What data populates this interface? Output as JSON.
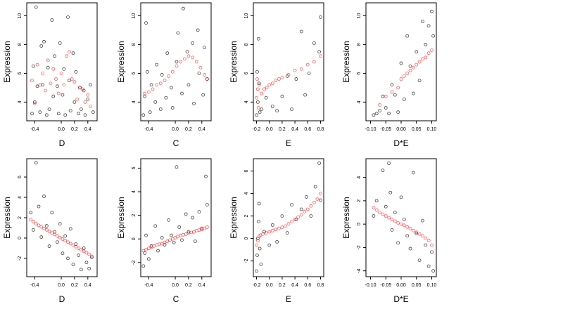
{
  "chart_data": [
    {
      "type": "scatter",
      "xlabel": "D",
      "ylabel": "Expression",
      "xticks": [
        "-0.4",
        "0.0",
        "0.2",
        "0.4"
      ],
      "xtick_values": [
        -0.4,
        0,
        0.2,
        0.4
      ],
      "yticks": [
        "4",
        "6",
        "8",
        "10"
      ],
      "ytick_values": [
        4,
        6,
        8,
        10
      ],
      "xlim": [
        -0.52,
        0.54
      ],
      "ylim": [
        2.7,
        10.9
      ],
      "series": [
        {
          "color": "#000000",
          "x": [
            -0.44,
            -0.42,
            -0.4,
            -0.38,
            -0.36,
            -0.32,
            -0.3,
            -0.28,
            -0.26,
            -0.22,
            -0.2,
            -0.18,
            -0.14,
            -0.12,
            -0.1,
            -0.06,
            -0.04,
            -0.02,
            0.02,
            0.04,
            0.06,
            0.1,
            0.12,
            0.14,
            0.18,
            0.2,
            0.22,
            0.26,
            0.28,
            0.3,
            0.34,
            0.36,
            0.4,
            0.44,
            0.48
          ],
          "y": [
            3.2,
            6.5,
            4.0,
            10.6,
            5.1,
            3.3,
            7.9,
            5.2,
            8.2,
            3.1,
            6.4,
            3.5,
            9.7,
            4.4,
            7.2,
            5.1,
            3.2,
            8.1,
            4.5,
            6.3,
            3.1,
            9.9,
            5.5,
            3.4,
            7.4,
            4.0,
            6.1,
            3.2,
            5.0,
            3.5,
            4.8,
            3.1,
            4.2,
            5.2,
            3.3
          ]
        },
        {
          "color": "#ff0000",
          "x": [
            -0.44,
            -0.4,
            -0.36,
            -0.32,
            -0.28,
            -0.24,
            -0.2,
            -0.16,
            -0.12,
            -0.08,
            -0.04,
            0.0,
            0.04,
            0.08,
            0.12,
            0.16,
            0.2,
            0.24,
            0.28,
            0.32,
            0.36,
            0.4,
            0.44
          ],
          "y": [
            5.5,
            3.9,
            6.6,
            5.2,
            6.0,
            4.8,
            6.9,
            5.3,
            6.3,
            5.6,
            4.6,
            6.0,
            5.2,
            7.2,
            7.5,
            5.6,
            5.4,
            4.2,
            5.0,
            4.9,
            4.0,
            4.5,
            3.7
          ]
        }
      ]
    },
    {
      "type": "scatter",
      "xlabel": "C",
      "ylabel": "Expression",
      "xticks": [
        "-0.4",
        "0.0",
        "0.2",
        "0.4"
      ],
      "xtick_values": [
        -0.4,
        0,
        0.2,
        0.4
      ],
      "yticks": [
        "4",
        "6",
        "8",
        "10"
      ],
      "ytick_values": [
        4,
        6,
        8,
        10
      ],
      "xlim": [
        -0.52,
        0.54
      ],
      "ylim": [
        2.7,
        10.9
      ],
      "series": [
        {
          "color": "#000000",
          "x": [
            -0.48,
            -0.46,
            -0.44,
            -0.42,
            -0.38,
            -0.36,
            -0.3,
            -0.28,
            -0.22,
            -0.2,
            -0.14,
            -0.12,
            -0.06,
            -0.04,
            0.02,
            0.04,
            0.1,
            0.12,
            0.18,
            0.2,
            0.26,
            0.28,
            0.34,
            0.36,
            0.42,
            0.44,
            0.48
          ],
          "y": [
            3.1,
            4.4,
            9.5,
            6.1,
            3.3,
            5.2,
            4.0,
            6.6,
            3.5,
            5.9,
            4.3,
            7.4,
            5.0,
            3.6,
            6.8,
            8.8,
            4.6,
            10.5,
            7.5,
            5.2,
            8.1,
            3.9,
            9.0,
            6.0,
            4.5,
            7.8,
            5.6
          ]
        },
        {
          "color": "#ff0000",
          "x": [
            -0.46,
            -0.4,
            -0.34,
            -0.28,
            -0.22,
            -0.16,
            -0.1,
            -0.04,
            0.02,
            0.08,
            0.14,
            0.2,
            0.26,
            0.32,
            0.38,
            0.44,
            0.48
          ],
          "y": [
            4.6,
            4.7,
            4.9,
            5.2,
            5.3,
            5.5,
            5.8,
            6.1,
            6.5,
            6.8,
            7.0,
            7.2,
            7.1,
            6.8,
            6.4,
            5.9,
            5.6
          ]
        }
      ]
    },
    {
      "type": "scatter",
      "xlabel": "E",
      "ylabel": "Expression",
      "xticks": [
        "-0.2",
        "0.0",
        "0.2",
        "0.4",
        "0.6",
        "0.8"
      ],
      "xtick_values": [
        -0.2,
        0,
        0.2,
        0.4,
        0.6,
        0.8
      ],
      "yticks": [
        "4",
        "6",
        "8",
        "10"
      ],
      "ytick_values": [
        4,
        6,
        8,
        10
      ],
      "xlim": [
        -0.25,
        0.85
      ],
      "ylim": [
        2.7,
        10.9
      ],
      "series": [
        {
          "color": "#000000",
          "x": [
            -0.2,
            -0.19,
            -0.18,
            -0.17,
            -0.16,
            -0.15,
            -0.12,
            -0.05,
            0.05,
            0.12,
            0.2,
            0.28,
            0.35,
            0.42,
            0.5,
            0.56,
            0.62,
            0.7,
            0.78,
            0.8
          ],
          "y": [
            3.1,
            6.1,
            4.0,
            8.4,
            5.3,
            3.3,
            3.5,
            4.3,
            3.7,
            3.4,
            4.4,
            5.8,
            3.5,
            5.6,
            8.9,
            4.5,
            6.0,
            8.1,
            7.5,
            9.9
          ]
        },
        {
          "color": "#ff0000",
          "x": [
            -0.2,
            -0.19,
            -0.18,
            -0.17,
            -0.16,
            -0.12,
            -0.08,
            -0.04,
            0.0,
            0.05,
            0.1,
            0.15,
            0.2,
            0.3,
            0.4,
            0.5,
            0.6,
            0.7,
            0.8
          ],
          "y": [
            4.3,
            5.6,
            4.9,
            3.6,
            5.2,
            4.6,
            4.9,
            5.0,
            5.2,
            5.3,
            5.5,
            5.6,
            5.7,
            5.9,
            6.2,
            6.3,
            6.6,
            6.8,
            7.2
          ]
        }
      ]
    },
    {
      "type": "scatter",
      "xlabel": "D*E",
      "ylabel": "Expression",
      "xticks": [
        "-0.10",
        "-0.05",
        "0.00",
        "0.05",
        "0.10"
      ],
      "xtick_values": [
        -0.1,
        -0.05,
        0,
        0.05,
        0.1
      ],
      "yticks": [
        "4",
        "6",
        "8",
        "10"
      ],
      "ytick_values": [
        4,
        6,
        8,
        10
      ],
      "xlim": [
        -0.115,
        0.115
      ],
      "ylim": [
        2.7,
        10.9
      ],
      "series": [
        {
          "color": "#000000",
          "x": [
            -0.09,
            -0.08,
            -0.07,
            -0.06,
            -0.05,
            -0.04,
            -0.03,
            -0.02,
            -0.01,
            0.0,
            0.01,
            0.02,
            0.03,
            0.04,
            0.05,
            0.06,
            0.07,
            0.08,
            0.09,
            0.1,
            0.105
          ],
          "y": [
            3.1,
            3.2,
            3.4,
            4.4,
            3.6,
            3.2,
            5.2,
            4.5,
            3.3,
            6.7,
            4.2,
            8.6,
            6.5,
            4.6,
            7.5,
            5.5,
            9.6,
            8.0,
            9.3,
            10.3,
            8.6
          ]
        },
        {
          "color": "#ff0000",
          "x": [
            -0.07,
            -0.05,
            -0.03,
            -0.01,
            0.0,
            0.01,
            0.02,
            0.03,
            0.04,
            0.05,
            0.06,
            0.07,
            0.08,
            0.09,
            0.1
          ],
          "y": [
            3.8,
            4.4,
            4.7,
            5.0,
            5.6,
            5.8,
            6.0,
            6.2,
            6.4,
            6.6,
            6.8,
            7.0,
            7.1,
            7.4,
            7.6
          ]
        }
      ]
    },
    {
      "type": "scatter",
      "xlabel": "D",
      "ylabel": "Expression",
      "xticks": [
        "-0.4",
        "0.0",
        "0.2",
        "0.4"
      ],
      "xtick_values": [
        -0.4,
        0,
        0.2,
        0.4
      ],
      "yticks": [
        "-2",
        "0",
        "2",
        "4",
        "6"
      ],
      "ytick_values": [
        -2,
        0,
        2,
        4,
        6
      ],
      "xlim": [
        -0.52,
        0.54
      ],
      "ylim": [
        -3.8,
        7.8
      ],
      "series": [
        {
          "color": "#000000",
          "x": [
            -0.46,
            -0.42,
            -0.38,
            -0.34,
            -0.3,
            -0.26,
            -0.22,
            -0.18,
            -0.14,
            -0.1,
            -0.06,
            -0.02,
            0.02,
            0.06,
            0.1,
            0.14,
            0.18,
            0.22,
            0.26,
            0.3,
            0.34,
            0.38,
            0.42,
            0.46
          ],
          "y": [
            2.5,
            0.8,
            7.4,
            3.1,
            0.1,
            4.1,
            1.2,
            -0.8,
            2.5,
            0.6,
            -0.4,
            1.4,
            -1.5,
            0.2,
            -2.0,
            0.9,
            -2.6,
            -0.6,
            -1.7,
            -3.1,
            -1.0,
            -2.4,
            -3.0,
            -1.9
          ]
        },
        {
          "color": "#ff0000",
          "x": [
            -0.46,
            -0.42,
            -0.38,
            -0.34,
            -0.3,
            -0.26,
            -0.22,
            -0.18,
            -0.14,
            -0.1,
            -0.06,
            -0.02,
            0.02,
            0.06,
            0.1,
            0.14,
            0.18,
            0.22,
            0.26,
            0.3,
            0.34,
            0.38,
            0.42,
            0.46
          ],
          "y": [
            1.8,
            1.6,
            1.4,
            1.25,
            1.1,
            0.95,
            0.8,
            0.65,
            0.5,
            0.35,
            0.2,
            0.05,
            -0.1,
            -0.25,
            -0.4,
            -0.55,
            -0.7,
            -0.85,
            -1.0,
            -1.15,
            -1.3,
            -1.45,
            -1.6,
            -1.8
          ]
        }
      ]
    },
    {
      "type": "scatter",
      "xlabel": "C",
      "ylabel": "Expression",
      "xticks": [
        "-0.4",
        "0.0",
        "0.2",
        "0.4"
      ],
      "xtick_values": [
        -0.4,
        0,
        0.2,
        0.4
      ],
      "yticks": [
        "-2",
        "0",
        "2",
        "4",
        "6"
      ],
      "ytick_values": [
        -2,
        0,
        2,
        4,
        6
      ],
      "xlim": [
        -0.52,
        0.54
      ],
      "ylim": [
        -3.2,
        6.8
      ],
      "series": [
        {
          "color": "#000000",
          "x": [
            -0.48,
            -0.46,
            -0.44,
            -0.4,
            -0.36,
            -0.3,
            -0.26,
            -0.2,
            -0.16,
            -0.1,
            -0.06,
            -0.02,
            0.02,
            0.06,
            0.1,
            0.16,
            0.2,
            0.26,
            0.3,
            0.36,
            0.4,
            0.46,
            0.48
          ],
          "y": [
            -2.3,
            -1.2,
            0.3,
            -1.7,
            -0.6,
            1.1,
            -1.0,
            0.1,
            -0.5,
            1.6,
            0.3,
            -0.3,
            6.1,
            1.0,
            -0.1,
            2.1,
            0.6,
            1.8,
            -0.2,
            2.3,
            0.9,
            5.3,
            2.9
          ]
        },
        {
          "color": "#ff0000",
          "x": [
            -0.48,
            -0.44,
            -0.4,
            -0.36,
            -0.32,
            -0.28,
            -0.24,
            -0.2,
            -0.16,
            -0.12,
            -0.08,
            -0.04,
            0.0,
            0.04,
            0.08,
            0.12,
            0.16,
            0.2,
            0.24,
            0.28,
            0.32,
            0.36,
            0.4,
            0.44,
            0.48
          ],
          "y": [
            -1.0,
            -0.9,
            -0.8,
            -0.7,
            -0.6,
            -0.5,
            -0.45,
            -0.4,
            -0.3,
            -0.2,
            -0.1,
            0.0,
            0.1,
            0.2,
            0.3,
            0.35,
            0.4,
            0.5,
            0.55,
            0.6,
            0.7,
            0.75,
            0.8,
            0.9,
            1.0
          ]
        }
      ]
    },
    {
      "type": "scatter",
      "xlabel": "E",
      "ylabel": "Expression",
      "xticks": [
        "-0.2",
        "0.0",
        "0.2",
        "0.4",
        "0.6",
        "0.8"
      ],
      "xtick_values": [
        -0.2,
        0,
        0.2,
        0.4,
        0.6,
        0.8
      ],
      "yticks": [
        "-2",
        "0",
        "2",
        "4",
        "6"
      ],
      "ytick_values": [
        -2,
        0,
        2,
        4,
        6
      ],
      "xlim": [
        -0.25,
        0.85
      ],
      "ylim": [
        -3.4,
        7.1
      ],
      "series": [
        {
          "color": "#000000",
          "x": [
            -0.2,
            -0.19,
            -0.18,
            -0.17,
            -0.16,
            -0.15,
            -0.13,
            -0.08,
            0.0,
            0.05,
            0.12,
            0.2,
            0.28,
            0.35,
            0.42,
            0.5,
            0.58,
            0.65,
            0.72,
            0.78,
            0.8
          ],
          "y": [
            -2.9,
            -1.5,
            0.0,
            1.5,
            3.1,
            -0.9,
            -2.3,
            0.6,
            -0.6,
            1.2,
            -0.3,
            2.0,
            0.5,
            3.0,
            1.7,
            2.6,
            3.7,
            2.0,
            4.6,
            6.7,
            3.4
          ]
        },
        {
          "color": "#ff0000",
          "x": [
            -0.2,
            -0.18,
            -0.16,
            -0.14,
            -0.1,
            -0.05,
            0.0,
            0.05,
            0.1,
            0.15,
            0.2,
            0.25,
            0.3,
            0.35,
            0.4,
            0.45,
            0.5,
            0.55,
            0.6,
            0.65,
            0.7,
            0.75,
            0.8
          ],
          "y": [
            -0.6,
            -0.2,
            0.2,
            0.3,
            0.4,
            0.5,
            0.6,
            0.7,
            0.8,
            0.9,
            1.0,
            1.1,
            1.3,
            1.5,
            1.7,
            1.9,
            2.1,
            2.4,
            2.6,
            2.9,
            3.2,
            3.5,
            4.0
          ]
        }
      ]
    },
    {
      "type": "scatter",
      "xlabel": "D*E",
      "ylabel": "Expression",
      "xticks": [
        "-0.10",
        "-0.05",
        "0.00",
        "0.05",
        "0.10"
      ],
      "xtick_values": [
        -0.1,
        -0.05,
        0,
        0.05,
        0.1
      ],
      "yticks": [
        "-4",
        "-2",
        "0",
        "2",
        "4"
      ],
      "ytick_values": [
        -4,
        -2,
        0,
        2,
        4
      ],
      "xlim": [
        -0.115,
        0.115
      ],
      "ylim": [
        -4.5,
        5.6
      ],
      "series": [
        {
          "color": "#000000",
          "x": [
            -0.09,
            -0.08,
            -0.06,
            -0.05,
            -0.04,
            -0.035,
            -0.03,
            -0.02,
            -0.01,
            0.0,
            0.01,
            0.02,
            0.03,
            0.04,
            0.05,
            0.06,
            0.07,
            0.08,
            0.09,
            0.1,
            0.105
          ],
          "y": [
            0.7,
            2.0,
            4.6,
            1.5,
            5.2,
            2.7,
            -0.5,
            1.0,
            -1.6,
            2.3,
            0.4,
            -1.0,
            -2.1,
            4.4,
            -0.8,
            -3.1,
            0.3,
            -1.8,
            -3.6,
            -2.4,
            -4.0
          ]
        },
        {
          "color": "#ff0000",
          "x": [
            -0.09,
            -0.08,
            -0.07,
            -0.06,
            -0.05,
            -0.04,
            -0.03,
            -0.02,
            -0.01,
            0.0,
            0.01,
            0.02,
            0.03,
            0.04,
            0.05,
            0.06,
            0.07,
            0.08,
            0.09,
            0.1
          ],
          "y": [
            1.4,
            1.2,
            1.0,
            0.85,
            0.7,
            0.55,
            0.4,
            0.25,
            0.1,
            0.0,
            -0.1,
            -0.25,
            -0.4,
            -0.55,
            -0.7,
            -0.85,
            -1.0,
            -1.2,
            -1.4,
            -1.8
          ]
        }
      ]
    }
  ]
}
